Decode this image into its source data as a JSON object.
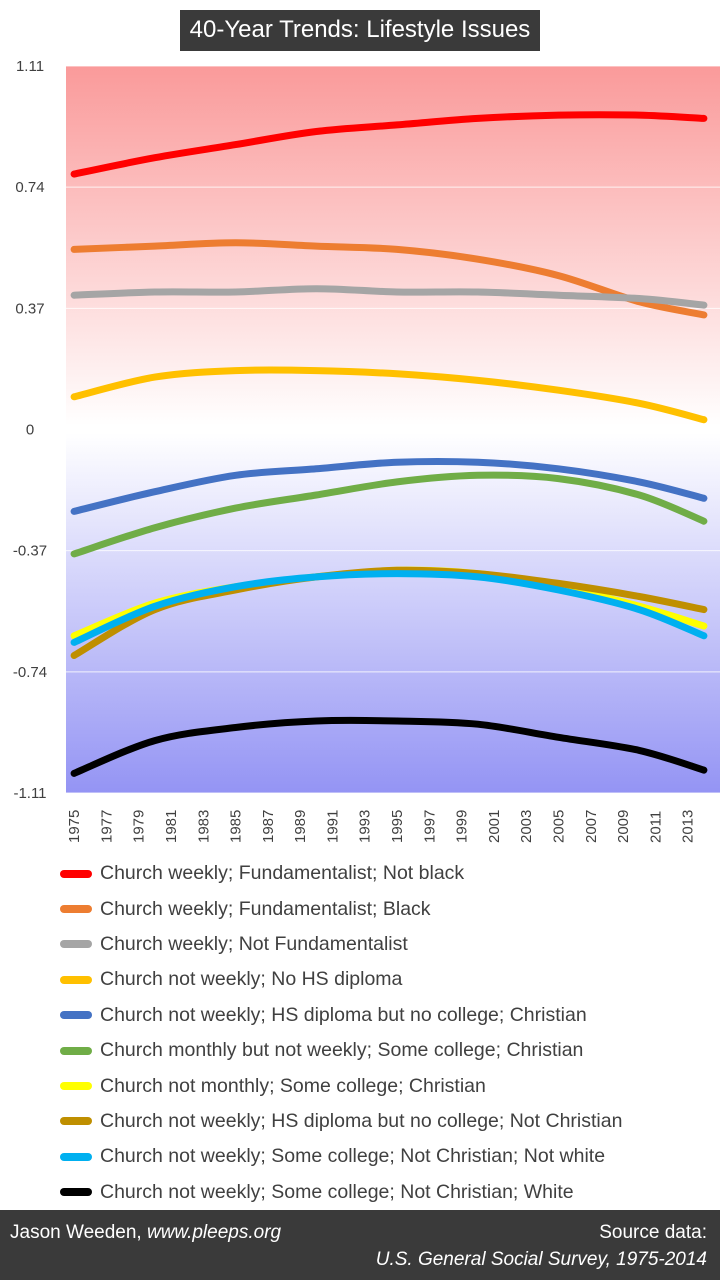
{
  "chart_data": {
    "type": "line",
    "title": "40-Year Trends: Lifestyle Issues",
    "xlabel": "",
    "ylabel": "",
    "x_ticks": [
      "1975",
      "1977",
      "1979",
      "1981",
      "1983",
      "1985",
      "1987",
      "1989",
      "1991",
      "1993",
      "1995",
      "1997",
      "1999",
      "2001",
      "2003",
      "2005",
      "2007",
      "2009",
      "2011",
      "2013"
    ],
    "y_ticks": [
      "1.11",
      "0.74",
      "0.37",
      "0",
      "-0.37",
      "-0.74",
      "-1.11"
    ],
    "ylim": [
      -1.11,
      1.11
    ],
    "xlim": [
      1974.5,
      2015.0
    ],
    "grid": true,
    "background": "vertical gradient: red above 0, blue below 0",
    "legend_position": "bottom",
    "x": [
      1975,
      1980,
      1985,
      1990,
      1995,
      2000,
      2005,
      2010,
      2014
    ],
    "series": [
      {
        "name": "Church weekly; Fundamentalist; Not black",
        "color": "#ff0000",
        "values": [
          0.78,
          0.83,
          0.87,
          0.91,
          0.93,
          0.95,
          0.96,
          0.96,
          0.95
        ]
      },
      {
        "name": "Church weekly; Fundamentalist; Black",
        "color": "#ed7d31",
        "values": [
          0.55,
          0.56,
          0.57,
          0.56,
          0.55,
          0.52,
          0.47,
          0.39,
          0.35
        ]
      },
      {
        "name": "Church weekly; Not Fundamentalist",
        "color": "#a5a5a5",
        "values": [
          0.41,
          0.42,
          0.42,
          0.43,
          0.42,
          0.42,
          0.41,
          0.4,
          0.38
        ]
      },
      {
        "name": "Church not weekly; No HS diploma",
        "color": "#ffc000",
        "values": [
          0.1,
          0.16,
          0.18,
          0.18,
          0.17,
          0.15,
          0.12,
          0.08,
          0.03
        ]
      },
      {
        "name": "Church not weekly; HS diploma but no college; Christian",
        "color": "#4472c4",
        "values": [
          -0.25,
          -0.19,
          -0.14,
          -0.12,
          -0.1,
          -0.1,
          -0.12,
          -0.16,
          -0.21
        ]
      },
      {
        "name": "Church monthly but not weekly; Some college; Christian",
        "color": "#70ad47",
        "values": [
          -0.38,
          -0.3,
          -0.24,
          -0.2,
          -0.16,
          -0.14,
          -0.15,
          -0.2,
          -0.28
        ]
      },
      {
        "name": "Church not monthly; Some college; Christian",
        "color": "#ffff00",
        "values": [
          -0.63,
          -0.53,
          -0.48,
          -0.45,
          -0.43,
          -0.44,
          -0.48,
          -0.54,
          -0.6
        ]
      },
      {
        "name": "Church not weekly; HS diploma but no college; Not Christian",
        "color": "#bf8f00",
        "values": [
          -0.69,
          -0.55,
          -0.49,
          -0.45,
          -0.43,
          -0.44,
          -0.47,
          -0.51,
          -0.55
        ]
      },
      {
        "name": "Church not weekly; Some college; Not Christian; Not white",
        "color": "#00b0f0",
        "values": [
          -0.65,
          -0.54,
          -0.48,
          -0.45,
          -0.44,
          -0.45,
          -0.49,
          -0.55,
          -0.63
        ]
      },
      {
        "name": "Church not weekly; Some college; Not Christian; White",
        "color": "#000000",
        "values": [
          -1.05,
          -0.95,
          -0.91,
          -0.89,
          -0.89,
          -0.9,
          -0.94,
          -0.98,
          -1.04
        ]
      }
    ]
  },
  "footer": {
    "author": "Jason Weeden, ",
    "site": "www.pleeps.org",
    "source_label": "Source data:",
    "source_text": "U.S. General Social Survey, 1975-2014"
  }
}
